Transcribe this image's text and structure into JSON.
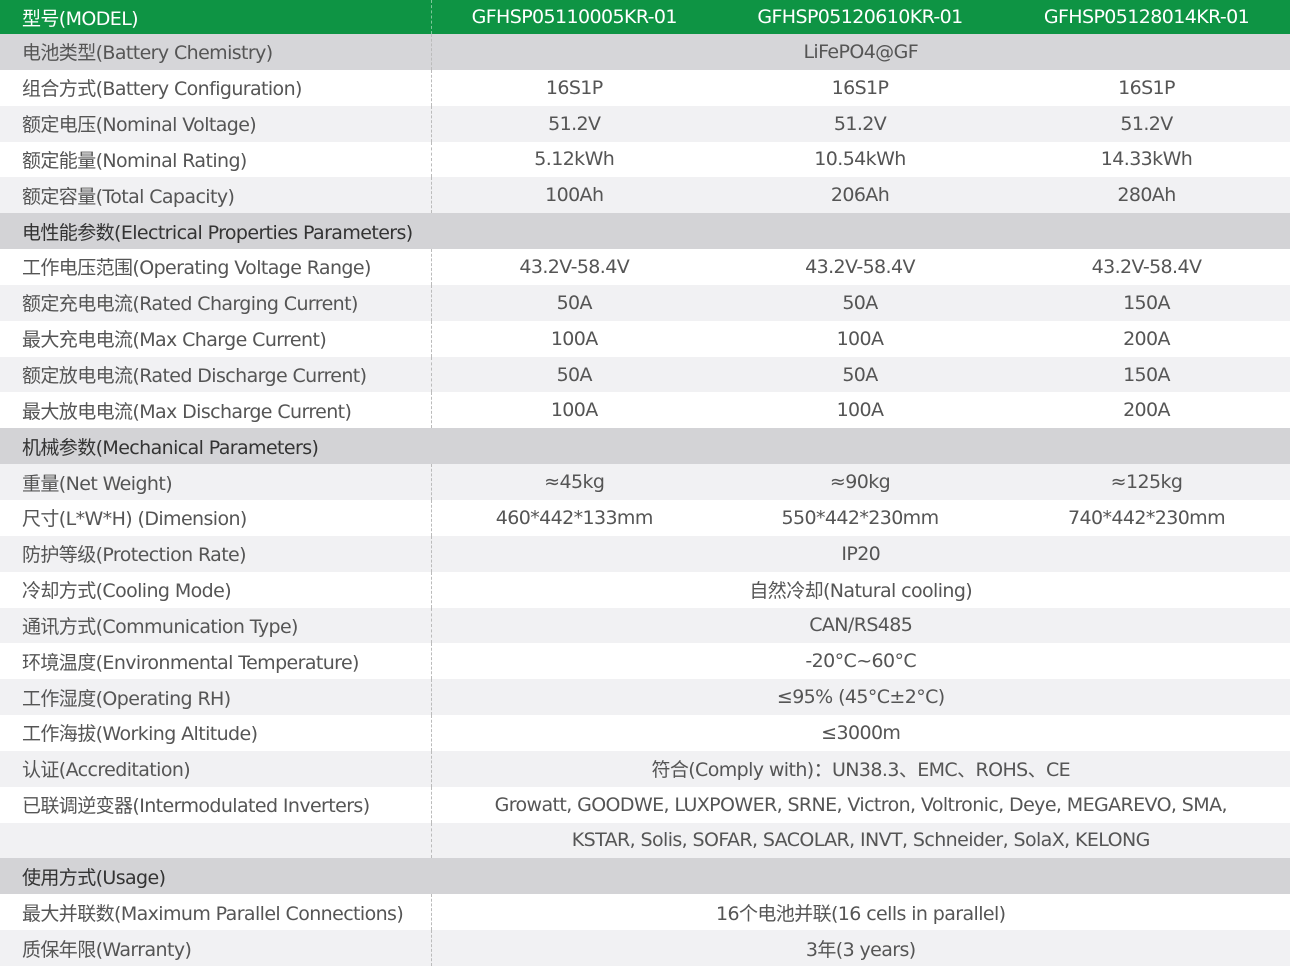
{
  "header": {
    "label": "型号(MODEL)",
    "models": [
      "GFHSP05110005KR-01",
      "GFHSP05120610KR-01",
      "GFHSP05128014KR-01"
    ]
  },
  "rows": [
    {
      "type": "chem",
      "label": "电池类型(Battery Chemistry)",
      "span": "LiFePO4@GF"
    },
    {
      "type": "white",
      "label": "组合方式(Battery Configuration)",
      "values": [
        "16S1P",
        "16S1P",
        "16S1P"
      ]
    },
    {
      "type": "gray",
      "label": "额定电压(Nominal Voltage)",
      "values": [
        "51.2V",
        "51.2V",
        "51.2V"
      ]
    },
    {
      "type": "white",
      "label": "额定能量(Nominal Rating)",
      "values": [
        "5.12kWh",
        "10.54kWh",
        "14.33kWh"
      ]
    },
    {
      "type": "gray",
      "label": "额定容量(Total Capacity)",
      "values": [
        "100Ah",
        "206Ah",
        "280Ah"
      ]
    },
    {
      "type": "section",
      "label": "电性能参数(Electrical Properties Parameters)"
    },
    {
      "type": "white",
      "label": "工作电压范围(Operating Voltage Range)",
      "values": [
        "43.2V-58.4V",
        "43.2V-58.4V",
        "43.2V-58.4V"
      ]
    },
    {
      "type": "gray",
      "label": "额定充电电流(Rated Charging Current)",
      "values": [
        "50A",
        "50A",
        "150A"
      ]
    },
    {
      "type": "white",
      "label": "最大充电电流(Max Charge Current)",
      "values": [
        "100A",
        "100A",
        "200A"
      ]
    },
    {
      "type": "gray",
      "label": "额定放电电流(Rated Discharge Current)",
      "values": [
        "50A",
        "50A",
        "150A"
      ]
    },
    {
      "type": "white",
      "label": "最大放电电流(Max Discharge Current)",
      "values": [
        "100A",
        "100A",
        "200A"
      ]
    },
    {
      "type": "section",
      "label": "机械参数(Mechanical Parameters)"
    },
    {
      "type": "gray",
      "label": "重量(Net Weight)",
      "values": [
        "≈45kg",
        "≈90kg",
        "≈125kg"
      ]
    },
    {
      "type": "white",
      "label": "尺寸(L*W*H) (Dimension)",
      "values": [
        "460*442*133mm",
        "550*442*230mm",
        "740*442*230mm"
      ]
    },
    {
      "type": "gray",
      "label": "防护等级(Protection Rate)",
      "span": "IP20"
    },
    {
      "type": "white",
      "label": "冷却方式(Cooling Mode)",
      "span": "自然冷却(Natural cooling)"
    },
    {
      "type": "gray",
      "label": "通讯方式(Communication Type)",
      "span": "CAN/RS485"
    },
    {
      "type": "white",
      "label": "环境温度(Environmental Temperature)",
      "span": "-20°C~60°C"
    },
    {
      "type": "gray",
      "label": "工作湿度(Operating RH)",
      "span": "≤95% (45°C±2°C)"
    },
    {
      "type": "white",
      "label": "工作海拔(Working Altitude)",
      "span": "≤3000m"
    },
    {
      "type": "gray",
      "label": "认证(Accreditation)",
      "span": "符合(Comply with)：UN38.3、EMC、ROHS、CE"
    },
    {
      "type": "white",
      "label": "已联调逆变器(Intermodulated Inverters)",
      "span": "Growatt, GOODWE, LUXPOWER, SRNE, Victron, Voltronic, Deye, MEGAREVO, SMA,"
    },
    {
      "type": "gray",
      "label": "",
      "span": "KSTAR, Solis, SOFAR, SACOLAR, INVT, Schneider, SolaX, KELONG"
    },
    {
      "type": "section",
      "label": "使用方式(Usage)"
    },
    {
      "type": "white",
      "label": "最大并联数(Maximum Parallel Connections)",
      "span": "16个电池并联(16 cells in parallel)"
    },
    {
      "type": "gray",
      "label": "质保年限(Warranty)",
      "span": "3年(3 years)"
    }
  ]
}
